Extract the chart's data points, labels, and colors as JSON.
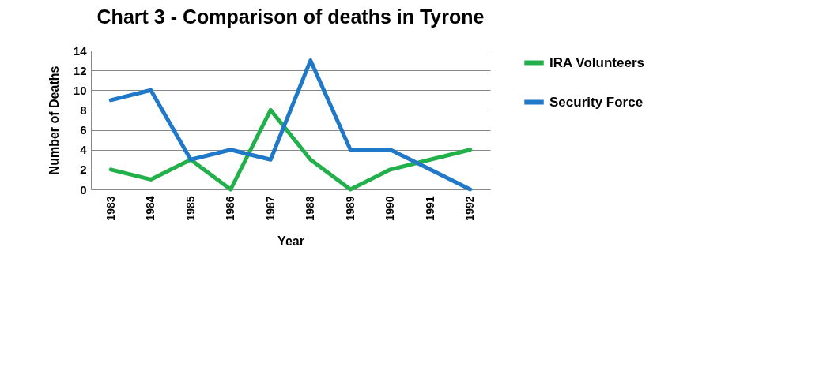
{
  "chart_data": {
    "type": "line",
    "title": "Chart 3 - Comparison of deaths in Tyrone",
    "xlabel": "Year",
    "ylabel": "Number of Deaths",
    "categories": [
      "1983",
      "1984",
      "1985",
      "1986",
      "1987",
      "1988",
      "1989",
      "1990",
      "1991",
      "1992"
    ],
    "series": [
      {
        "name": "IRA Volunteers",
        "color": "#22b04b",
        "values": [
          2,
          1,
          3,
          0,
          8,
          3,
          0,
          2,
          3,
          4
        ]
      },
      {
        "name": "Security Force",
        "color": "#1f78c8",
        "values": [
          9,
          10,
          3,
          4,
          3,
          13,
          4,
          4,
          2,
          0
        ]
      }
    ],
    "ylim": [
      0,
      14
    ],
    "yticks": [
      0,
      2,
      4,
      6,
      8,
      10,
      12,
      14
    ],
    "grid": "y",
    "legend": "right"
  }
}
